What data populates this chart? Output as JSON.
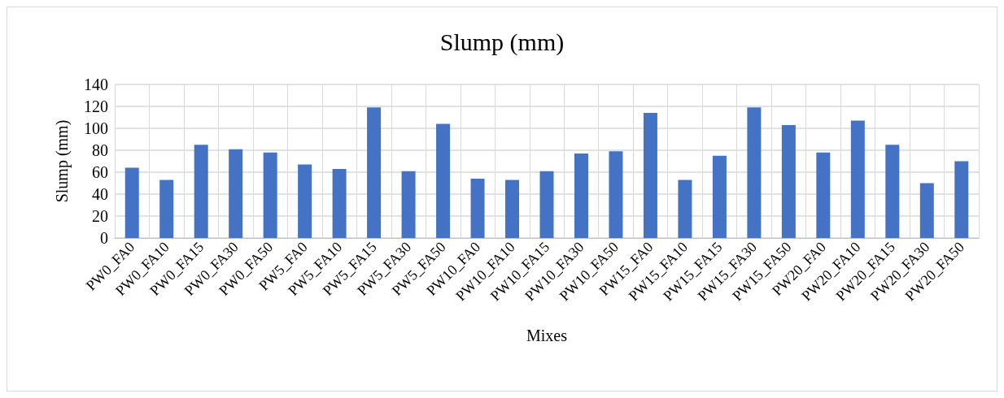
{
  "chart_data": {
    "type": "bar",
    "title": "Slump (mm)",
    "xlabel": "Mixes",
    "ylabel": "Slump (mm)",
    "categories": [
      "PW0_FA0",
      "PW0_FA10",
      "PW0_FA15",
      "PW0_FA30",
      "PW0_FA50",
      "PW5_FA0",
      "PW5_FA10",
      "PW5_FA15",
      "PW5_FA30",
      "PW5_FA50",
      "PW10_FA0",
      "PW10_FA10",
      "PW10_FA15",
      "PW10_FA30",
      "PW10_FA50",
      "PW15_FA0",
      "PW15_FA10",
      "PW15_FA15",
      "PW15_FA30",
      "PW15_FA50",
      "PW20_FA0",
      "PW20_FA10",
      "PW20_FA15",
      "PW20_FA30",
      "PW20_FA50"
    ],
    "values": [
      64,
      53,
      85,
      81,
      78,
      67,
      63,
      119,
      61,
      104,
      54,
      53,
      61,
      77,
      79,
      114,
      53,
      75,
      119,
      103,
      78,
      107,
      85,
      50,
      70
    ],
    "color": "#4472c4",
    "ylim": [
      0,
      140
    ],
    "yticks": [
      0,
      20,
      40,
      60,
      80,
      100,
      120,
      140
    ],
    "grid": true
  }
}
